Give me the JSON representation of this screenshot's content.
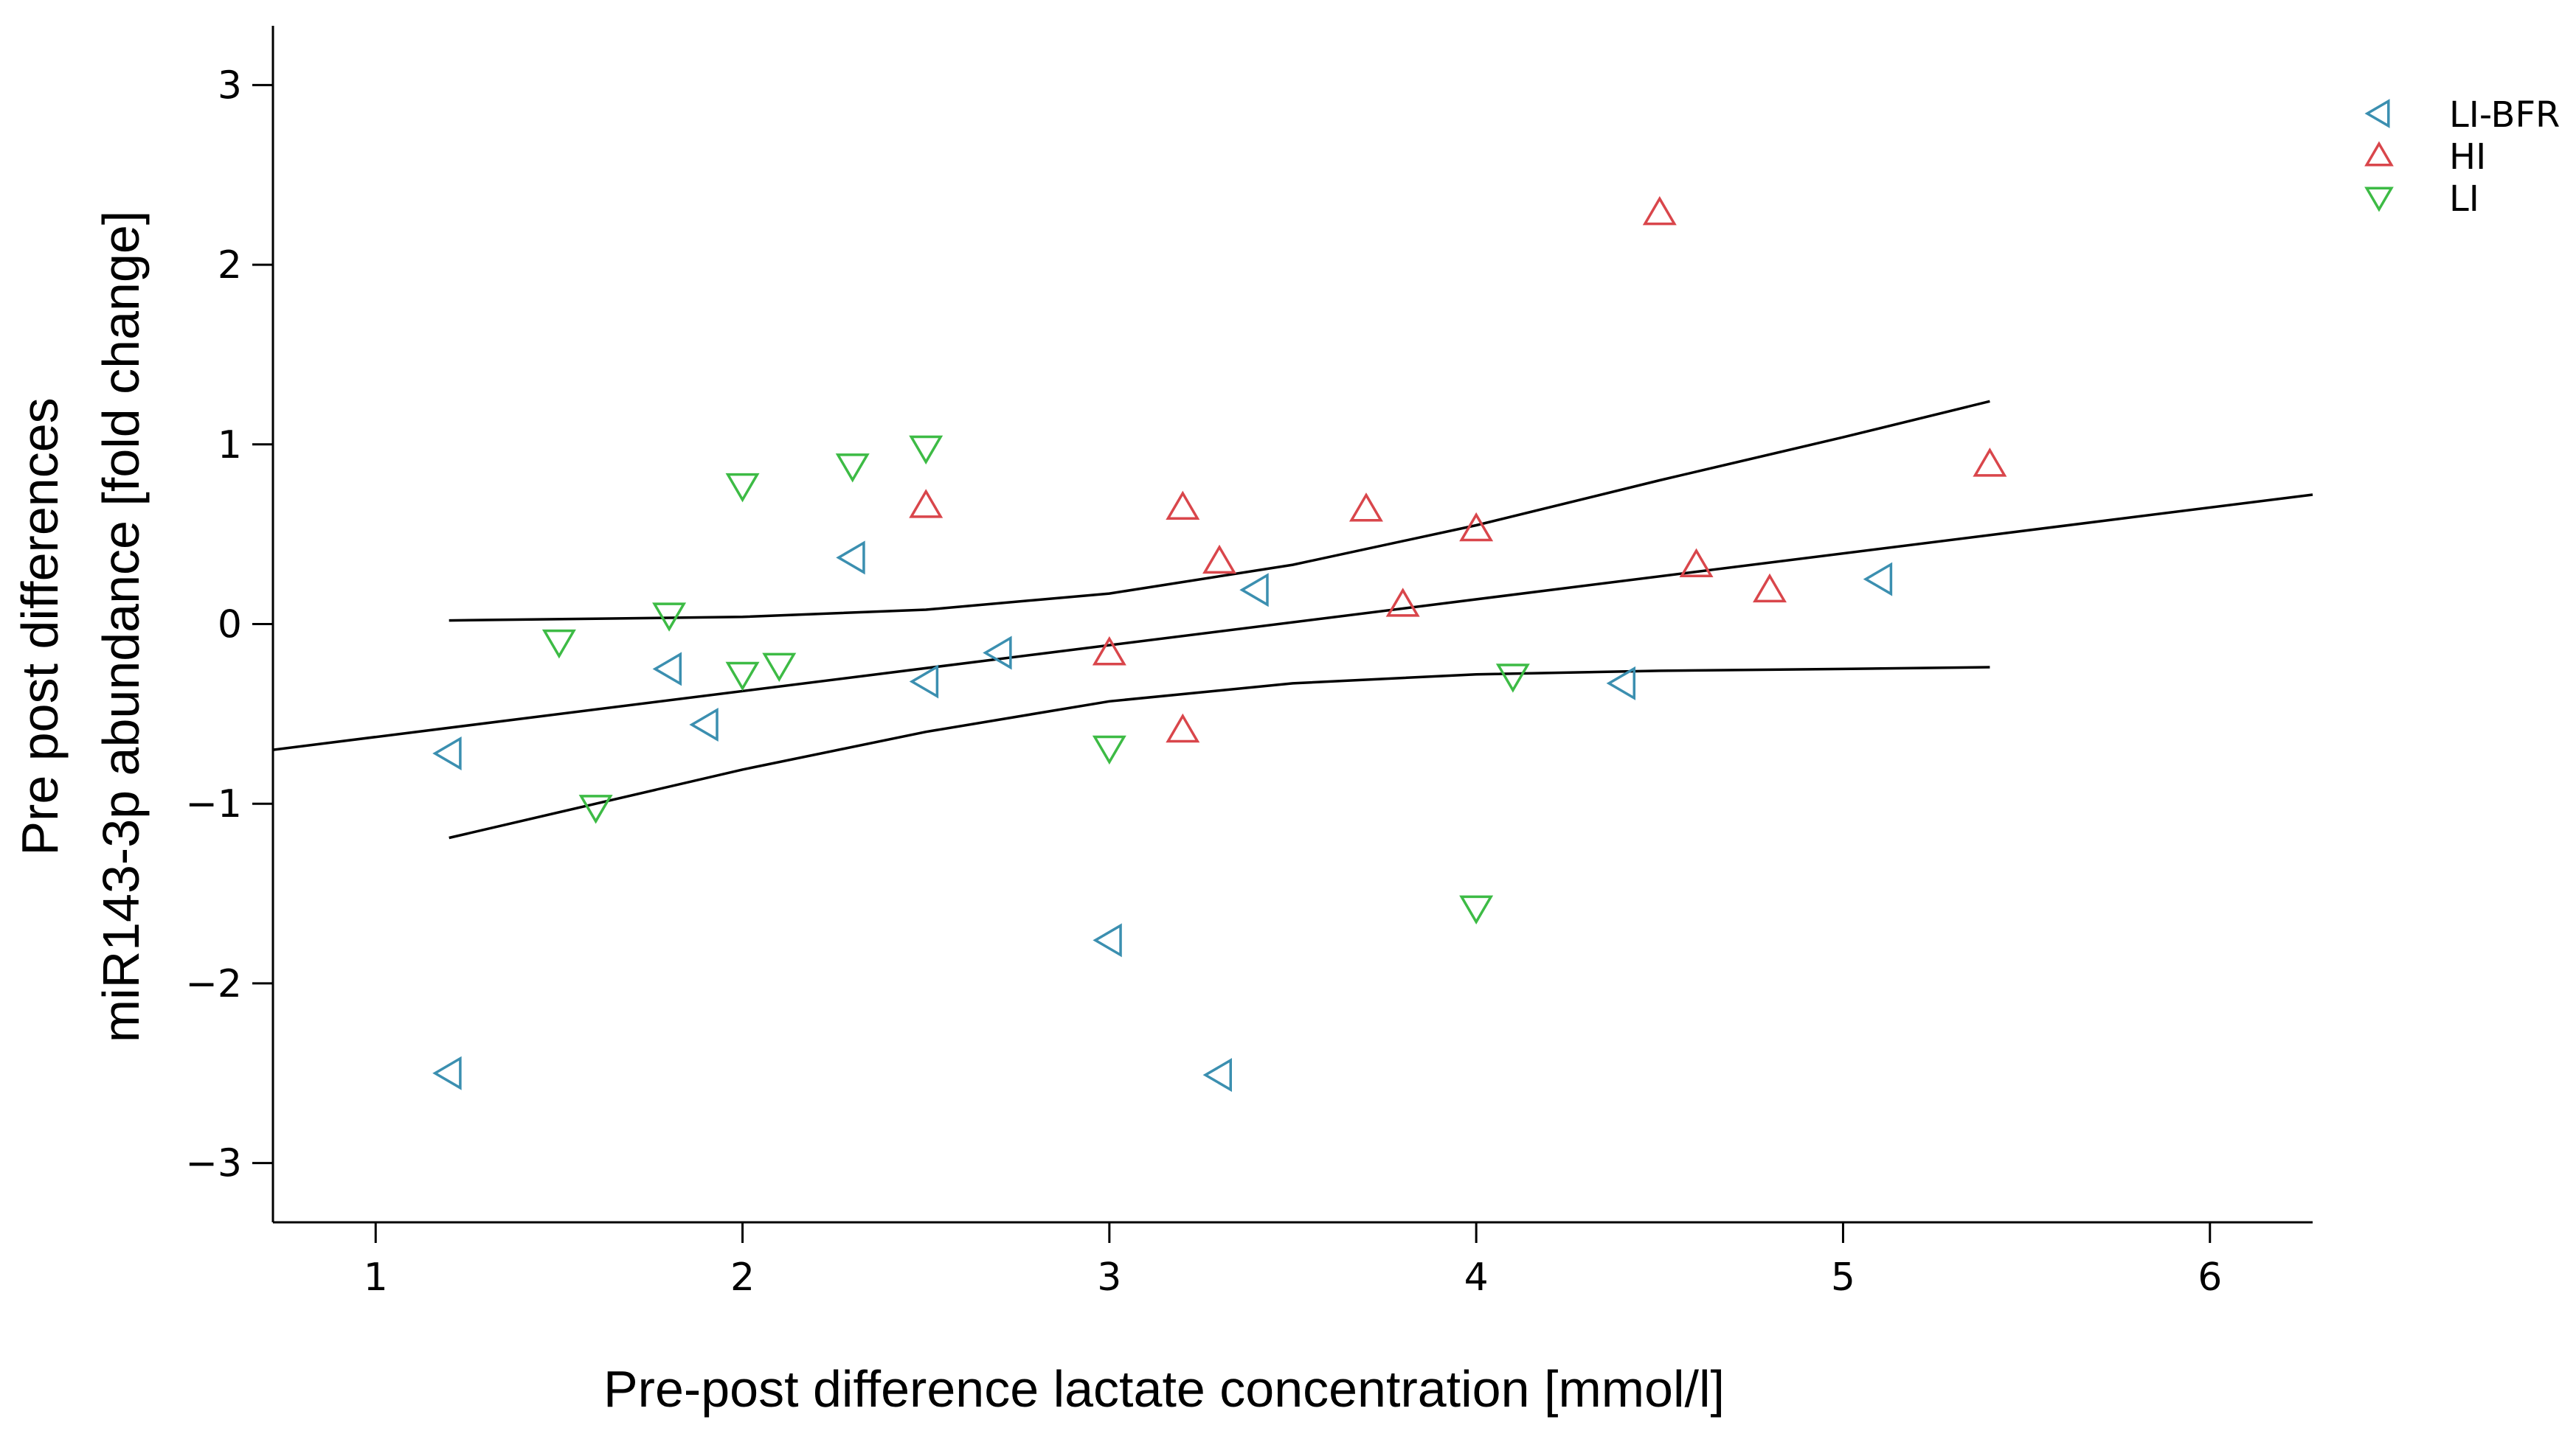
{
  "chart_data": {
    "type": "scatter",
    "title": "",
    "xlabel": "Pre-post difference lactate concentration [mmol/l]",
    "ylabel_lines": [
      "Pre post differences",
      "miR143-3p abundance [fold change]"
    ],
    "xlim": [
      0.72,
      6.28
    ],
    "ylim": [
      -3.33,
      3.33
    ],
    "x_ticks": [
      1,
      2,
      3,
      4,
      5,
      6
    ],
    "y_ticks": [
      -3,
      -2,
      -1,
      0,
      1,
      2,
      3
    ],
    "x_tick_labels": [
      "1",
      "2",
      "3",
      "4",
      "5",
      "6"
    ],
    "y_tick_labels": [
      "−3",
      "−2",
      "−1",
      "0",
      "1",
      "2",
      "3"
    ],
    "grid": false,
    "legend_position": "top-right",
    "series": [
      {
        "name": "LI-BFR",
        "marker": "triangle-left",
        "color": "#3b8fb0",
        "points": [
          [
            1.2,
            -0.72
          ],
          [
            1.2,
            -2.5
          ],
          [
            1.8,
            -0.25
          ],
          [
            1.9,
            -0.56
          ],
          [
            2.3,
            0.37
          ],
          [
            2.5,
            -0.32
          ],
          [
            2.7,
            -0.16
          ],
          [
            3.0,
            -1.76
          ],
          [
            3.3,
            -2.51
          ],
          [
            3.4,
            0.19
          ],
          [
            4.4,
            -0.33
          ],
          [
            5.1,
            0.25
          ]
        ]
      },
      {
        "name": "HI",
        "marker": "triangle-up",
        "color": "#d9464b",
        "points": [
          [
            2.5,
            0.66
          ],
          [
            3.0,
            -0.16
          ],
          [
            3.2,
            0.65
          ],
          [
            3.2,
            -0.59
          ],
          [
            3.3,
            0.35
          ],
          [
            3.7,
            0.64
          ],
          [
            3.8,
            0.11
          ],
          [
            4.0,
            0.53
          ],
          [
            4.5,
            2.29
          ],
          [
            4.6,
            0.33
          ],
          [
            4.8,
            0.19
          ],
          [
            5.4,
            0.89
          ]
        ]
      },
      {
        "name": "LI",
        "marker": "triangle-down",
        "color": "#3dbb45",
        "points": [
          [
            1.5,
            -0.1
          ],
          [
            1.6,
            -1.02
          ],
          [
            1.8,
            0.05
          ],
          [
            2.0,
            0.77
          ],
          [
            2.0,
            -0.28
          ],
          [
            2.1,
            -0.23
          ],
          [
            2.3,
            0.88
          ],
          [
            2.5,
            0.98
          ],
          [
            3.0,
            -0.69
          ],
          [
            4.0,
            -1.58
          ],
          [
            4.1,
            -0.29
          ]
        ]
      }
    ],
    "fit_lines": [
      {
        "name": "regression",
        "points": [
          [
            0.72,
            -0.7
          ],
          [
            6.28,
            0.72
          ]
        ]
      },
      {
        "name": "upper-ci",
        "points": [
          [
            1.2,
            0.02
          ],
          [
            1.6,
            0.03
          ],
          [
            2.0,
            0.04
          ],
          [
            2.5,
            0.08
          ],
          [
            3.0,
            0.17
          ],
          [
            3.5,
            0.33
          ],
          [
            4.0,
            0.55
          ],
          [
            4.5,
            0.8
          ],
          [
            5.0,
            1.04
          ],
          [
            5.4,
            1.24
          ]
        ]
      },
      {
        "name": "lower-ci",
        "points": [
          [
            1.2,
            -1.19
          ],
          [
            1.6,
            -1.0
          ],
          [
            2.0,
            -0.81
          ],
          [
            2.5,
            -0.6
          ],
          [
            3.0,
            -0.43
          ],
          [
            3.5,
            -0.33
          ],
          [
            4.0,
            -0.28
          ],
          [
            4.5,
            -0.26
          ],
          [
            5.0,
            -0.25
          ],
          [
            5.4,
            -0.24
          ]
        ]
      }
    ]
  }
}
